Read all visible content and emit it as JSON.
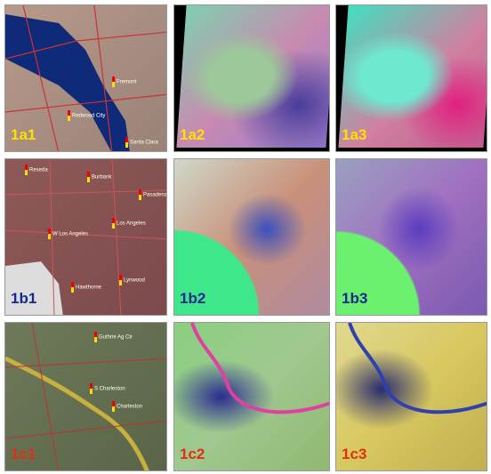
{
  "panels": [
    {
      "label": "1a1",
      "places": [
        "Fremont",
        "Redwood City",
        "Santa Clara"
      ]
    },
    {
      "label": "1a2"
    },
    {
      "label": "1a3"
    },
    {
      "label": "1b1",
      "places": [
        "Reseda",
        "Burbank",
        "Pasadena",
        "W Los Angeles",
        "Los Angeles",
        "Hawthorne",
        "Lynwood"
      ]
    },
    {
      "label": "1b2"
    },
    {
      "label": "1b3"
    },
    {
      "label": "1c1",
      "places": [
        "Guthrie Ag Ctr",
        "S Charleston",
        "Charleston"
      ]
    },
    {
      "label": "1c2"
    },
    {
      "label": "1c3"
    }
  ]
}
